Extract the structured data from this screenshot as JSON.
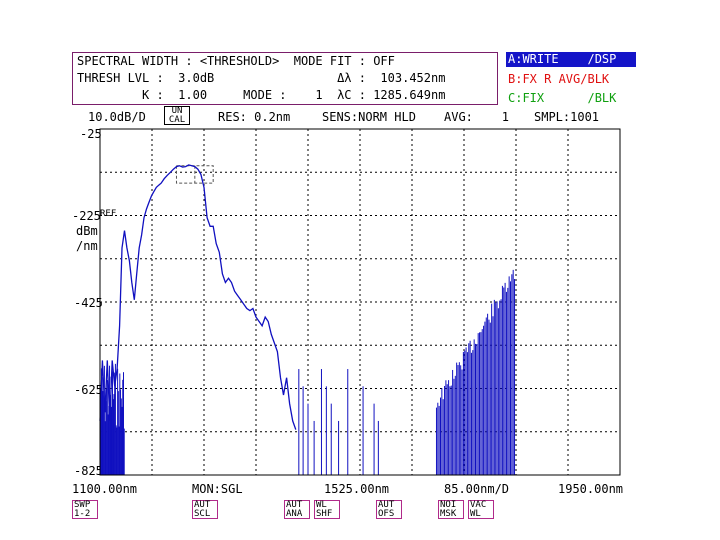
{
  "header": {
    "line1": "SPECTRAL WIDTH : <THRESHOLD>  MODE FIT : OFF",
    "line2": "THRESH LVL :  3.0dB                 Δλ :  103.452nm",
    "line3": "         K :  1.00     MODE :    1  λC : 1285.649nm"
  },
  "traces": {
    "a": "A:WRITE    /DSP",
    "b": "B:FX R AVG/BLK",
    "c": "C:FIX      /BLK"
  },
  "status_bar": {
    "scale": "10.0dB/D",
    "uncal": "UN\nCAL",
    "res": "RES: 0.2nm",
    "sens": "SENS:NORM HLD",
    "avg": "AVG:    1",
    "smpl": "SMPL:1001"
  },
  "y_axis": {
    "ticks": [
      "-25",
      "-225",
      "-425",
      "-625",
      "-825"
    ],
    "ref_marker": "REF",
    "unit_line1": "dBm",
    "unit_line2": "/nm"
  },
  "bottom_bar": {
    "start": "1100.00nm",
    "mon": "MON:SGL",
    "center": "1525.00nm",
    "span_div": "85.00nm/D",
    "stop": "1950.00nm"
  },
  "softkeys": [
    {
      "id": "swp",
      "label": "SWP\n1-2"
    },
    {
      "id": "aut-scl",
      "label": "AUT\nSCL"
    },
    {
      "id": "aut-ana",
      "label": "AUT\nANA"
    },
    {
      "id": "wl-shf",
      "label": "WL\nSHF"
    },
    {
      "id": "aut-ofs",
      "label": "AUT\nOFS"
    },
    {
      "id": "noi-msk",
      "label": "NOI\nMSK"
    },
    {
      "id": "vac-wl",
      "label": "VAC\nWL"
    }
  ],
  "colors": {
    "trace": "#1010c0",
    "grid": "#000000",
    "box_border": "#7a1e6a",
    "trace_a_bg": "#1414c8",
    "trace_b": "#e01010",
    "trace_c": "#10a010",
    "softkey_border": "#b02a8a"
  },
  "chart_data": {
    "type": "line",
    "title": "",
    "xlabel": "",
    "ylabel": "dBm /nm",
    "xlim": [
      1100,
      1950
    ],
    "ylim": [
      -825,
      -25
    ],
    "grid": true,
    "x_tick_labels": [
      "1100.00nm",
      "1525.00nm",
      "1950.00nm"
    ],
    "y_tick_labels": [
      "-25",
      "-225",
      "-425",
      "-625",
      "-825"
    ],
    "series": [
      {
        "x": [
          1100,
          1104,
          1108,
          1112,
          1116,
          1120,
          1124,
          1128,
          1132,
          1136,
          1140,
          1144,
          1148,
          1152,
          1156,
          1160,
          1164,
          1168,
          1172,
          1176,
          1180,
          1184,
          1188,
          1192,
          1196,
          1200,
          1205,
          1210,
          1215,
          1220,
          1225,
          1230,
          1235,
          1240,
          1245,
          1250,
          1255,
          1260,
          1265,
          1270,
          1275,
          1280,
          1285,
          1290,
          1295,
          1300,
          1305,
          1310,
          1315,
          1320,
          1325,
          1330,
          1335,
          1340,
          1345,
          1350,
          1355,
          1360,
          1365,
          1370,
          1375,
          1380,
          1385,
          1390,
          1395,
          1400,
          1405,
          1410,
          1415,
          1420
        ],
        "values": [
          -700,
          -560,
          -680,
          -560,
          -700,
          -560,
          -620,
          -580,
          -480,
          -300,
          -260,
          -300,
          -330,
          -380,
          -420,
          -360,
          -300,
          -270,
          -230,
          -210,
          -195,
          -180,
          -170,
          -160,
          -155,
          -150,
          -140,
          -132,
          -125,
          -118,
          -112,
          -110,
          -113,
          -112,
          -108,
          -110,
          -112,
          -118,
          -130,
          -160,
          -230,
          -250,
          -250,
          -290,
          -310,
          -360,
          -380,
          -370,
          -380,
          -400,
          -410,
          -420,
          -430,
          -440,
          -445,
          -440,
          -460,
          -470,
          -480,
          -460,
          -470,
          -500,
          -520,
          -540,
          -600,
          -640,
          -600,
          -660,
          -700,
          -720
        ]
      }
    ],
    "markers": [
      {
        "type": "threshold_box",
        "x_range": [
          1225,
          1285
        ],
        "y_range": [
          -150,
          -110
        ]
      }
    ],
    "annotations": [
      "REF"
    ]
  }
}
